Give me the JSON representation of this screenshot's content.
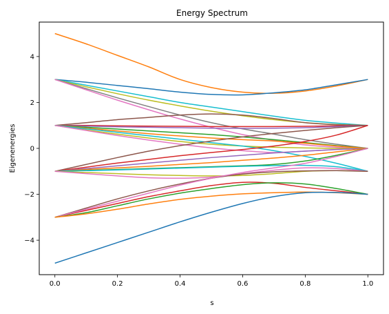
{
  "chart_data": {
    "type": "line",
    "title": "Energy Spectrum",
    "xlabel": "s",
    "ylabel": "Eigenenergies",
    "xlim": [
      -0.05,
      1.05
    ],
    "ylim": [
      -5.5,
      5.5
    ],
    "xticks": [
      0.0,
      0.2,
      0.4,
      0.6,
      0.8,
      1.0
    ],
    "xtick_labels": [
      "0.0",
      "0.2",
      "0.4",
      "0.6",
      "0.8",
      "1.0"
    ],
    "yticks": [
      -4,
      -2,
      0,
      2,
      4
    ],
    "ytick_labels": [
      "−4",
      "−2",
      "0",
      "2",
      "4"
    ],
    "grid": false,
    "x": [
      0.0,
      0.1,
      0.2,
      0.3,
      0.4,
      0.5,
      0.6,
      0.7,
      0.8,
      0.9,
      1.0
    ],
    "series": [
      {
        "color": "#ff7f0e",
        "values": [
          5.0,
          4.55,
          4.05,
          3.55,
          3.0,
          2.65,
          2.45,
          2.4,
          2.5,
          2.72,
          3.0
        ]
      },
      {
        "color": "#1f77b4",
        "values": [
          3.0,
          2.88,
          2.74,
          2.6,
          2.45,
          2.35,
          2.33,
          2.42,
          2.55,
          2.77,
          3.0
        ]
      },
      {
        "color": "#17becf",
        "values": [
          3.0,
          2.75,
          2.5,
          2.25,
          2.0,
          1.8,
          1.6,
          1.4,
          1.22,
          1.1,
          1.0
        ]
      },
      {
        "color": "#bcbd22",
        "values": [
          3.0,
          2.68,
          2.38,
          2.1,
          1.85,
          1.62,
          1.42,
          1.25,
          1.12,
          1.04,
          1.0
        ]
      },
      {
        "color": "#7f7f7f",
        "values": [
          3.0,
          2.6,
          2.2,
          1.82,
          1.45,
          1.12,
          0.85,
          0.62,
          0.38,
          0.18,
          0.0
        ]
      },
      {
        "color": "#e377c2",
        "values": [
          3.0,
          2.55,
          2.1,
          1.68,
          1.28,
          0.92,
          0.6,
          0.35,
          0.15,
          0.05,
          0.0
        ]
      },
      {
        "color": "#8c564b",
        "values": [
          1.0,
          1.12,
          1.25,
          1.35,
          1.45,
          1.5,
          1.45,
          1.3,
          1.12,
          1.03,
          1.0
        ]
      },
      {
        "color": "#d62728",
        "values": [
          1.0,
          1.0,
          0.98,
          0.97,
          0.96,
          0.95,
          0.95,
          0.95,
          0.96,
          0.98,
          1.0
        ]
      },
      {
        "color": "#9467bd",
        "values": [
          1.0,
          0.97,
          0.94,
          0.92,
          0.9,
          0.88,
          0.87,
          0.88,
          0.9,
          0.95,
          1.0
        ]
      },
      {
        "color": "#2ca02c",
        "values": [
          1.0,
          0.92,
          0.84,
          0.76,
          0.68,
          0.6,
          0.5,
          0.38,
          0.25,
          0.12,
          0.0
        ]
      },
      {
        "color": "#ff7f0e",
        "values": [
          1.0,
          0.88,
          0.76,
          0.64,
          0.54,
          0.45,
          0.38,
          0.32,
          0.22,
          0.1,
          0.0
        ]
      },
      {
        "color": "#bcbd22",
        "values": [
          1.0,
          0.8,
          0.62,
          0.45,
          0.3,
          0.18,
          0.1,
          0.05,
          0.02,
          0.0,
          0.0
        ]
      },
      {
        "color": "#17becf",
        "values": [
          1.0,
          0.85,
          0.7,
          0.55,
          0.4,
          0.25,
          0.1,
          -0.1,
          -0.35,
          -0.65,
          -1.0
        ]
      },
      {
        "color": "#e377c2",
        "values": [
          1.0,
          0.78,
          0.56,
          0.36,
          0.18,
          0.02,
          -0.1,
          -0.18,
          -0.12,
          -0.05,
          0.0
        ]
      },
      {
        "color": "#8c564b",
        "values": [
          -1.0,
          -0.7,
          -0.4,
          -0.12,
          0.12,
          0.32,
          0.5,
          0.65,
          0.78,
          0.9,
          1.0
        ]
      },
      {
        "color": "#d62728",
        "values": [
          -1.0,
          -0.82,
          -0.64,
          -0.48,
          -0.32,
          -0.18,
          -0.05,
          0.1,
          0.3,
          0.58,
          1.0
        ]
      },
      {
        "color": "#9467bd",
        "values": [
          -1.0,
          -0.88,
          -0.76,
          -0.64,
          -0.52,
          -0.4,
          -0.3,
          -0.2,
          -0.12,
          -0.05,
          0.0
        ]
      },
      {
        "color": "#ff7f0e",
        "values": [
          -1.0,
          -0.92,
          -0.85,
          -0.78,
          -0.7,
          -0.62,
          -0.52,
          -0.42,
          -0.3,
          -0.15,
          0.0
        ]
      },
      {
        "color": "#2ca02c",
        "values": [
          -1.0,
          -0.96,
          -0.92,
          -0.88,
          -0.84,
          -0.8,
          -0.76,
          -0.7,
          -0.55,
          -0.3,
          0.0
        ]
      },
      {
        "color": "#17becf",
        "values": [
          -1.0,
          -0.97,
          -0.94,
          -0.9,
          -0.86,
          -0.82,
          -0.78,
          -0.75,
          -0.74,
          -0.8,
          -1.0
        ]
      },
      {
        "color": "#bcbd22",
        "values": [
          -1.0,
          -1.05,
          -1.1,
          -1.15,
          -1.18,
          -1.2,
          -1.18,
          -1.1,
          -1.0,
          -0.97,
          -1.0
        ]
      },
      {
        "color": "#e377c2",
        "values": [
          -1.0,
          -1.1,
          -1.2,
          -1.28,
          -1.3,
          -1.25,
          -1.1,
          -0.95,
          -0.85,
          -0.88,
          -1.0
        ]
      },
      {
        "color": "#8c564b",
        "values": [
          -3.0,
          -2.6,
          -2.2,
          -1.85,
          -1.55,
          -1.3,
          -1.12,
          -1.02,
          -0.98,
          -0.97,
          -1.0
        ]
      },
      {
        "color": "#d62728",
        "values": [
          -3.0,
          -2.7,
          -2.4,
          -2.1,
          -1.85,
          -1.62,
          -1.48,
          -1.52,
          -1.7,
          -1.85,
          -2.0
        ]
      },
      {
        "color": "#e377c2",
        "values": [
          -3.0,
          -2.65,
          -2.3,
          -1.95,
          -1.6,
          -1.3,
          -1.05,
          -0.85,
          -0.65,
          -0.35,
          0.0
        ]
      },
      {
        "color": "#2ca02c",
        "values": [
          -3.0,
          -2.8,
          -2.5,
          -2.2,
          -1.95,
          -1.75,
          -1.58,
          -1.5,
          -1.55,
          -1.75,
          -2.0
        ]
      },
      {
        "color": "#ff7f0e",
        "values": [
          -3.0,
          -2.85,
          -2.65,
          -2.42,
          -2.22,
          -2.08,
          -1.98,
          -1.93,
          -1.9,
          -1.93,
          -2.0
        ]
      },
      {
        "color": "#1f77b4",
        "values": [
          -5.0,
          -4.55,
          -4.1,
          -3.65,
          -3.2,
          -2.78,
          -2.4,
          -2.1,
          -1.93,
          -1.92,
          -2.0
        ]
      }
    ]
  }
}
